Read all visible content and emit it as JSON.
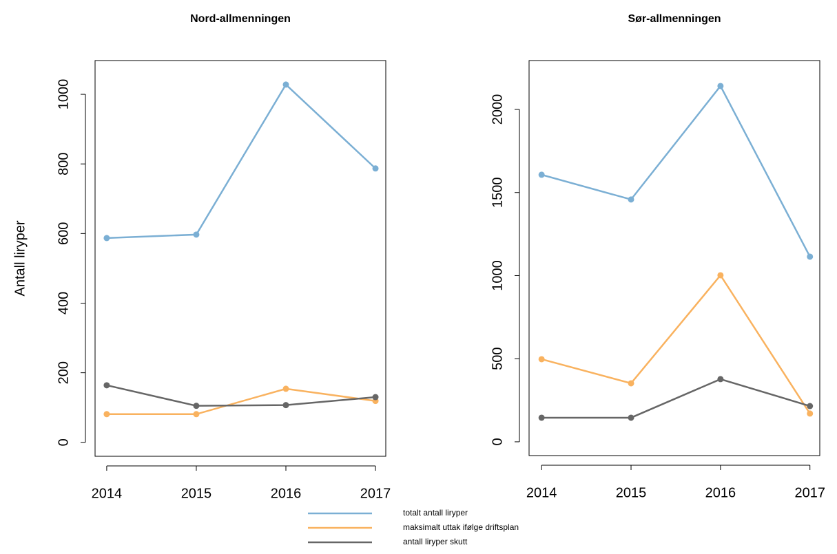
{
  "chart_data": [
    {
      "type": "line",
      "title": "Nord-allmenningen",
      "ylabel": "Antall liryper",
      "x": [
        2014,
        2015,
        2016,
        2017
      ],
      "xlim": [
        2013.87,
        2017.115
      ],
      "xticks": [
        2014,
        2015,
        2016,
        2017
      ],
      "ylim": [
        -40,
        1097
      ],
      "yticks": [
        0,
        200,
        400,
        600,
        800,
        1000
      ],
      "series": [
        {
          "name": "totalt antall liryper",
          "color": "#7bafd4",
          "values": [
            587,
            597,
            1028,
            787
          ]
        },
        {
          "name": "maksimalt uttak ifølge driftsplan",
          "color": "#f9b25f",
          "values": [
            81,
            81,
            154,
            119
          ]
        },
        {
          "name": "antall liryper skutt",
          "color": "#666666",
          "values": [
            164,
            105,
            107,
            130
          ]
        }
      ]
    },
    {
      "type": "line",
      "title": "Sør-allmenningen",
      "x": [
        2014,
        2015,
        2016,
        2017
      ],
      "xlim": [
        2013.86,
        2017.11
      ],
      "xticks": [
        2014,
        2015,
        2016,
        2017
      ],
      "ylim": [
        -83,
        2294
      ],
      "yticks": [
        0,
        500,
        1000,
        1500,
        2000
      ],
      "series": [
        {
          "color": "#7bafd4",
          "values": [
            1607,
            1458,
            2141,
            1114
          ]
        },
        {
          "color": "#f9b25f",
          "values": [
            497,
            352,
            1002,
            170
          ]
        },
        {
          "color": "#666666",
          "values": [
            145,
            145,
            377,
            215
          ]
        }
      ]
    }
  ]
}
